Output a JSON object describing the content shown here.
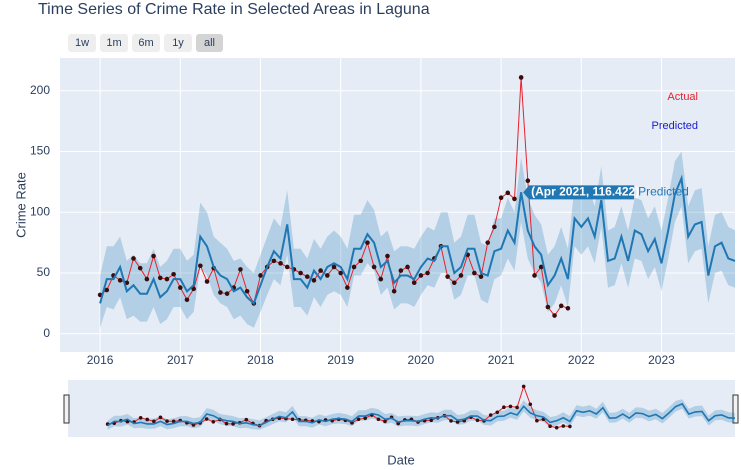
{
  "chart_data": {
    "type": "line",
    "title": "Time Series of Crime Rate in Selected Areas in Laguna",
    "x_label": "Date",
    "y_label": "Crime Rate",
    "buttons": [
      "1w",
      "1m",
      "6m",
      "1y",
      "all"
    ],
    "active_button": 4,
    "x": [
      "2016-01",
      "2016-02",
      "2016-03",
      "2016-04",
      "2016-05",
      "2016-06",
      "2016-07",
      "2016-08",
      "2016-09",
      "2016-10",
      "2016-11",
      "2016-12",
      "2017-01",
      "2017-02",
      "2017-03",
      "2017-04",
      "2017-05",
      "2017-06",
      "2017-07",
      "2017-08",
      "2017-09",
      "2017-10",
      "2017-11",
      "2017-12",
      "2018-01",
      "2018-02",
      "2018-03",
      "2018-04",
      "2018-05",
      "2018-06",
      "2018-07",
      "2018-08",
      "2018-09",
      "2018-10",
      "2018-11",
      "2018-12",
      "2019-01",
      "2019-02",
      "2019-03",
      "2019-04",
      "2019-05",
      "2019-06",
      "2019-07",
      "2019-08",
      "2019-09",
      "2019-10",
      "2019-11",
      "2019-12",
      "2020-01",
      "2020-02",
      "2020-03",
      "2020-04",
      "2020-05",
      "2020-06",
      "2020-07",
      "2020-08",
      "2020-09",
      "2020-10",
      "2020-11",
      "2020-12",
      "2021-01",
      "2021-02",
      "2021-03",
      "2021-04",
      "2021-05",
      "2021-06",
      "2021-07",
      "2021-08",
      "2021-09",
      "2021-10",
      "2021-11",
      "2021-12",
      "2022-01",
      "2022-02",
      "2022-03",
      "2022-04",
      "2022-05",
      "2022-06",
      "2022-07",
      "2022-08",
      "2022-09",
      "2022-10",
      "2022-11",
      "2022-12",
      "2023-01",
      "2023-02",
      "2023-03",
      "2023-04",
      "2023-05",
      "2023-06",
      "2023-07",
      "2023-08",
      "2023-09",
      "2023-10",
      "2023-11",
      "2023-12"
    ],
    "series": [
      {
        "name": "Actual",
        "color": "#e8212b",
        "marker_color": "#3a0d0d",
        "values": [
          32,
          36,
          48,
          44,
          42,
          62,
          54,
          45,
          64,
          46,
          45,
          49,
          38,
          28,
          37,
          56,
          43,
          54,
          34,
          33,
          38,
          53,
          35,
          25,
          48,
          55,
          60,
          58,
          55,
          53,
          50,
          47,
          44,
          52,
          48,
          55,
          50,
          38,
          55,
          60,
          75,
          55,
          45,
          64,
          35,
          52,
          55,
          42,
          48,
          50,
          62,
          72,
          47,
          42,
          48,
          65,
          50,
          47,
          75,
          88,
          112,
          116,
          111,
          211,
          126,
          48,
          55,
          22,
          15,
          23,
          21,
          null,
          null,
          null,
          null,
          null,
          null,
          null,
          null,
          null,
          null,
          null,
          null,
          null,
          null,
          null,
          null,
          null,
          null,
          null,
          null,
          null,
          null,
          null,
          null,
          null
        ]
      },
      {
        "name": "Predicted",
        "color": "#1f77b4",
        "band_color": "rgba(31,119,180,0.25)",
        "values": [
          25,
          45,
          45,
          55,
          35,
          40,
          33,
          33,
          45,
          30,
          35,
          45,
          45,
          35,
          40,
          80,
          72,
          55,
          48,
          45,
          35,
          38,
          30,
          25,
          40,
          55,
          68,
          62,
          90,
          45,
          45,
          38,
          52,
          45,
          55,
          58,
          55,
          45,
          70,
          70,
          82,
          75,
          55,
          60,
          42,
          48,
          48,
          45,
          55,
          62,
          60,
          72,
          72,
          50,
          55,
          70,
          70,
          50,
          48,
          68,
          70,
          85,
          75,
          116.422,
          85,
          72,
          65,
          40,
          48,
          62,
          45,
          95,
          88,
          95,
          80,
          110,
          60,
          62,
          80,
          60,
          85,
          82,
          68,
          78,
          58,
          85,
          115,
          128,
          80,
          90,
          92,
          48,
          72,
          75,
          62,
          60
        ],
        "lower": [
          5,
          22,
          20,
          30,
          12,
          15,
          10,
          10,
          22,
          8,
          12,
          22,
          22,
          12,
          18,
          55,
          48,
          32,
          25,
          22,
          12,
          15,
          8,
          5,
          18,
          32,
          45,
          40,
          65,
          22,
          22,
          15,
          30,
          22,
          32,
          35,
          32,
          22,
          48,
          48,
          58,
          52,
          32,
          38,
          20,
          25,
          25,
          22,
          32,
          40,
          38,
          50,
          50,
          28,
          32,
          48,
          48,
          28,
          25,
          45,
          48,
          62,
          52,
          92,
          62,
          50,
          42,
          18,
          25,
          40,
          22,
          72,
          65,
          72,
          58,
          88,
          38,
          40,
          58,
          38,
          62,
          60,
          45,
          55,
          35,
          62,
          92,
          105,
          58,
          68,
          70,
          25,
          50,
          52,
          40,
          38
        ],
        "upper": [
          48,
          72,
          72,
          80,
          60,
          65,
          58,
          58,
          70,
          55,
          60,
          70,
          70,
          60,
          65,
          108,
          100,
          80,
          75,
          70,
          60,
          62,
          55,
          50,
          65,
          80,
          95,
          88,
          118,
          70,
          70,
          62,
          78,
          70,
          80,
          85,
          80,
          70,
          98,
          98,
          110,
          102,
          80,
          85,
          68,
          72,
          72,
          70,
          80,
          88,
          85,
          100,
          100,
          75,
          80,
          98,
          98,
          75,
          72,
          95,
          95,
          112,
          100,
          145,
          112,
          98,
          90,
          65,
          72,
          88,
          70,
          122,
          115,
          122,
          105,
          138,
          85,
          88,
          105,
          85,
          112,
          110,
          95,
          105,
          85,
          112,
          142,
          150,
          105,
          118,
          120,
          72,
          98,
          100,
          88,
          85
        ]
      }
    ],
    "hover": {
      "text": "(Apr 2021, 116.422)",
      "series": 1,
      "index": 63
    },
    "xlim": [
      "2015-07",
      "2023-12"
    ],
    "ylim": [
      -15,
      227
    ],
    "xticks": [
      "2016",
      "2017",
      "2018",
      "2019",
      "2020",
      "2021",
      "2022",
      "2023"
    ],
    "yticks": [
      0,
      50,
      100,
      150,
      200
    ],
    "grid": true,
    "legend": "top-right",
    "range_slider": true
  }
}
